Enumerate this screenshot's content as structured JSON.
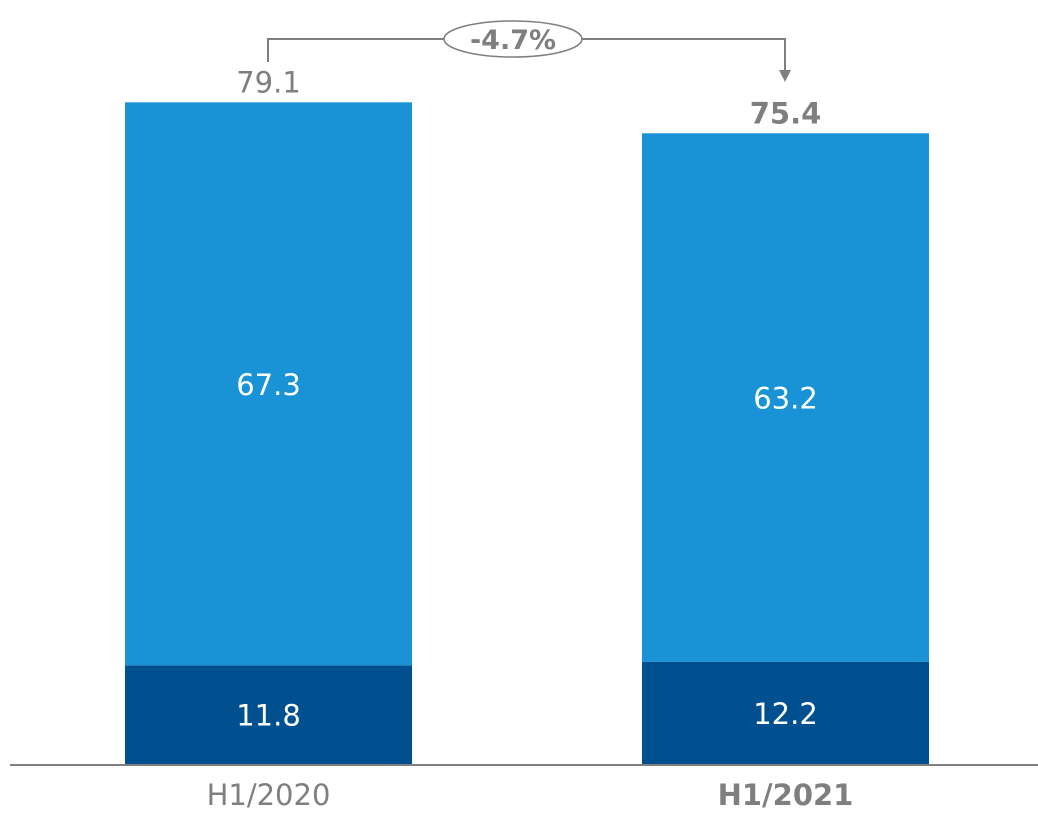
{
  "chart_data": {
    "type": "bar",
    "stacked": true,
    "categories": [
      "H1/2020",
      "H1/2021"
    ],
    "category_bold": [
      false,
      true
    ],
    "series": [
      {
        "values": [
          11.8,
          12.2
        ],
        "color": "#00508f",
        "label_color": "#ffffff"
      },
      {
        "values": [
          67.3,
          63.2
        ],
        "color": "#1a92d6",
        "label_color": "#ffffff"
      }
    ],
    "totals": [
      "79.1",
      "75.4"
    ],
    "total_bold": [
      false,
      true
    ],
    "change_label": "-4.7%",
    "title": "",
    "xlabel": "",
    "ylabel": "",
    "ylim": [
      0,
      84.4
    ],
    "grid": false,
    "legend": "none",
    "axis_color": "#7f7f7f",
    "text_color": "#7f7f7f"
  }
}
